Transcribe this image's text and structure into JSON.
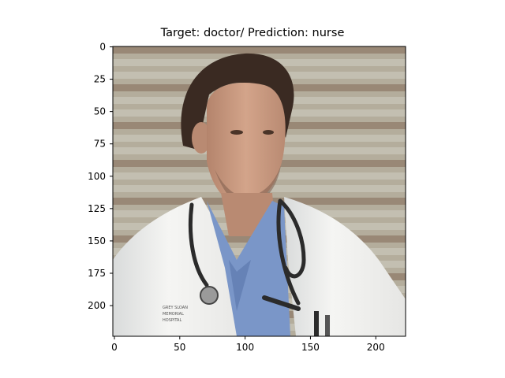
{
  "title": "Target: doctor/ Prediction: nurse",
  "image": {
    "description_icon": "photo-of-man-in-white-lab-coat-with-stethoscope",
    "badge_text": "GREY SLOAN MEMORIAL HOSPITAL"
  },
  "axes": {
    "x_ticks": [
      "0",
      "50",
      "100",
      "150",
      "200"
    ],
    "y_ticks": [
      "0",
      "25",
      "50",
      "75",
      "100",
      "125",
      "150",
      "175",
      "200"
    ],
    "x_range": [
      0,
      224
    ],
    "y_range": [
      0,
      224
    ]
  },
  "colors": {
    "background_stripes": "#a9a79a",
    "coat": "#f2f2f0",
    "scrubs": "#7a96c8",
    "hair": "#3a2a22",
    "skin": "#c99a80"
  }
}
